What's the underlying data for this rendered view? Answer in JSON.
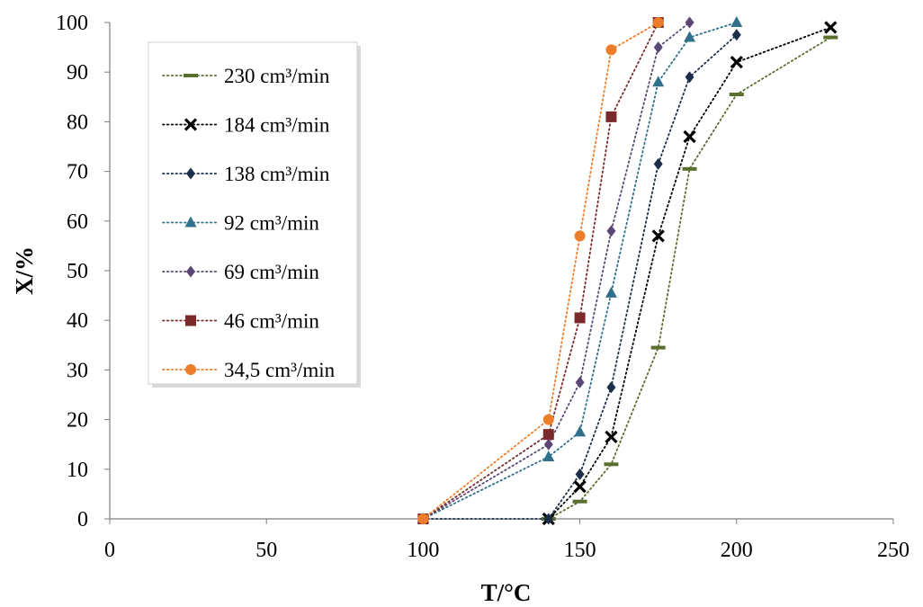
{
  "chart_data": {
    "type": "scatter",
    "xlabel": "T/°C",
    "ylabel": "X/%",
    "xlim": [
      0,
      250
    ],
    "ylim": [
      0,
      100
    ],
    "xticks": [
      0,
      50,
      100,
      150,
      200,
      250
    ],
    "yticks": [
      0,
      10,
      20,
      30,
      40,
      50,
      60,
      70,
      80,
      90,
      100
    ],
    "grid": false,
    "legend_position": "upper-left",
    "line_style": "dotted",
    "series": [
      {
        "name": "230 cm³/min",
        "color": "#5a6e2e",
        "marker": "dash",
        "x": [
          140,
          150,
          160,
          175,
          185,
          200,
          230
        ],
        "y": [
          0,
          3.5,
          11,
          34.5,
          70.5,
          85.5,
          97
        ]
      },
      {
        "name": "184 cm³/min",
        "color": "#000000",
        "marker": "x",
        "x": [
          140,
          150,
          160,
          175,
          185,
          200,
          230
        ],
        "y": [
          0,
          6.5,
          16.5,
          57,
          77,
          92,
          99
        ]
      },
      {
        "name": "138 cm³/min",
        "color": "#1c2e4a",
        "marker": "diamond",
        "x": [
          100,
          140,
          150,
          160,
          175,
          185,
          200
        ],
        "y": [
          0,
          0,
          9,
          26.5,
          71.5,
          89,
          97.5
        ]
      },
      {
        "name": "92 cm³/min",
        "color": "#31708a",
        "marker": "triangle",
        "x": [
          100,
          140,
          150,
          160,
          175,
          185,
          200
        ],
        "y": [
          0,
          12.5,
          17.5,
          45.5,
          88,
          97,
          100
        ]
      },
      {
        "name": "69 cm³/min",
        "color": "#5b4775",
        "marker": "diamond",
        "x": [
          100,
          140,
          150,
          160,
          175,
          185
        ],
        "y": [
          0,
          15,
          27.5,
          58,
          95,
          100
        ]
      },
      {
        "name": "46 cm³/min",
        "color": "#7a2a2a",
        "marker": "square",
        "x": [
          100,
          140,
          150,
          160,
          175
        ],
        "y": [
          0,
          17,
          40.5,
          81,
          100
        ]
      },
      {
        "name": "34,5 cm³/min",
        "color": "#ee7d2a",
        "marker": "circle",
        "x": [
          100,
          140,
          150,
          160,
          175
        ],
        "y": [
          0,
          20,
          57,
          94.5,
          100
        ]
      }
    ]
  }
}
